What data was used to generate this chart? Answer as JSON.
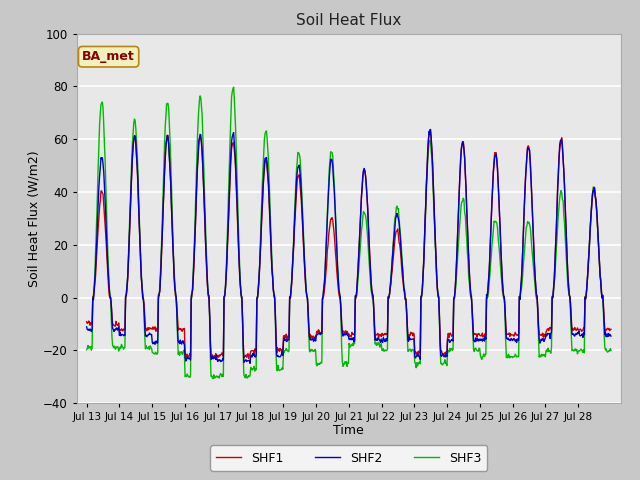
{
  "title": "Soil Heat Flux",
  "xlabel": "Time",
  "ylabel": "Soil Heat Flux (W/m2)",
  "ylim": [
    -40,
    100
  ],
  "yticks": [
    -40,
    -20,
    0,
    20,
    40,
    60,
    80,
    100
  ],
  "xtick_labels": [
    "Jul 13",
    "Jul 14",
    "Jul 15",
    "Jul 16",
    "Jul 17",
    "Jul 18",
    "Jul 19",
    "Jul 20",
    "Jul 21",
    "Jul 22",
    "Jul 23",
    "Jul 24",
    "Jul 25",
    "Jul 26",
    "Jul 27",
    "Jul 28"
  ],
  "legend_labels": [
    "SHF1",
    "SHF2",
    "SHF3"
  ],
  "line_colors": [
    "#cc0000",
    "#0000cc",
    "#00bb00"
  ],
  "annotation_text": "BA_met",
  "annotation_color": "#8b0000",
  "annotation_bg": "#f0f0c0",
  "annotation_edge": "#b8860b",
  "plot_bg_color": "#e8e8e8",
  "fig_bg_color": "#c8c8c8",
  "grid_color": "#ffffff",
  "figsize": [
    6.4,
    4.8
  ],
  "dpi": 100,
  "peak_shf1": [
    41,
    62,
    62,
    62,
    60,
    53,
    47,
    31,
    49,
    26,
    64,
    60,
    56,
    58,
    61,
    42
  ],
  "peak_shf2": [
    54,
    62,
    62,
    63,
    63,
    54,
    51,
    53,
    49,
    32,
    64,
    60,
    55,
    58,
    61,
    42
  ],
  "peak_shf3": [
    75,
    68,
    75,
    77,
    80,
    64,
    56,
    56,
    33,
    35,
    60,
    38,
    30,
    30,
    41,
    42
  ],
  "night_shf1": [
    -10,
    -12,
    -12,
    -22,
    -22,
    -20,
    -15,
    -13,
    -14,
    -14,
    -21,
    -14,
    -14,
    -14,
    -12,
    -12
  ],
  "night_shf2": [
    -12,
    -14,
    -17,
    -23,
    -24,
    -22,
    -16,
    -14,
    -16,
    -16,
    -22,
    -16,
    -16,
    -16,
    -14,
    -14
  ],
  "night_shf3": [
    -19,
    -19,
    -21,
    -30,
    -30,
    -27,
    -20,
    -25,
    -18,
    -20,
    -25,
    -20,
    -22,
    -22,
    -20,
    -20
  ]
}
